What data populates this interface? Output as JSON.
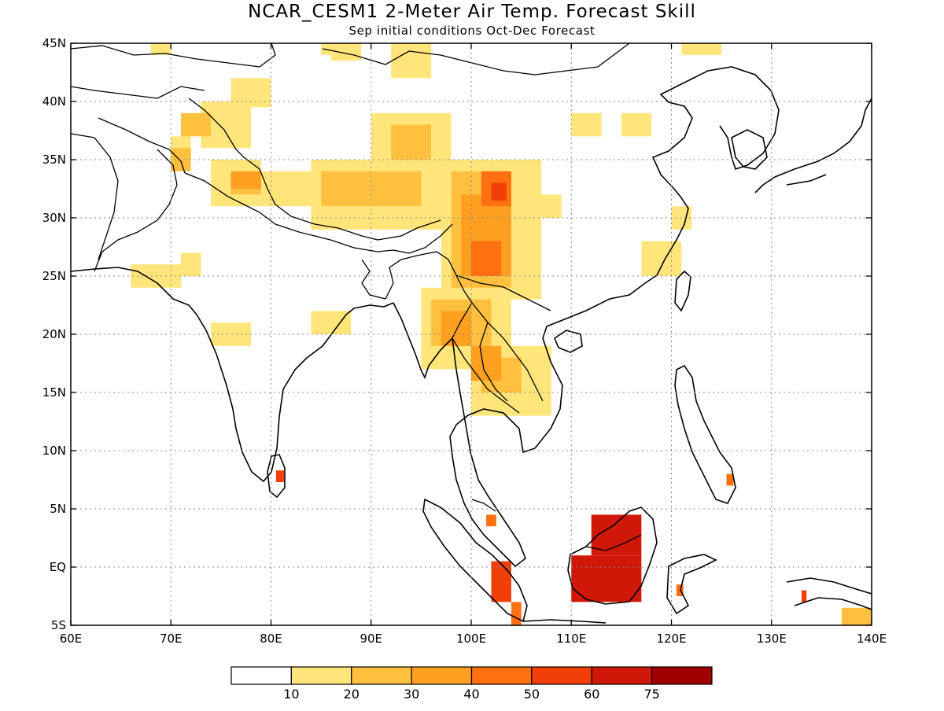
{
  "title": "NCAR_CESM1 2-Meter Air Temp. Forecast Skill",
  "subtitle": "Sep initial conditions  Oct-Dec Forecast",
  "map": {
    "lon_range": [
      60,
      140
    ],
    "lat_range": [
      -5,
      45
    ],
    "x_ticks": [
      {
        "value": 60,
        "label": "60E"
      },
      {
        "value": 70,
        "label": "70E"
      },
      {
        "value": 80,
        "label": "80E"
      },
      {
        "value": 90,
        "label": "90E"
      },
      {
        "value": 100,
        "label": "100E"
      },
      {
        "value": 110,
        "label": "110E"
      },
      {
        "value": 120,
        "label": "120E"
      },
      {
        "value": 130,
        "label": "130E"
      },
      {
        "value": 140,
        "label": "140E"
      }
    ],
    "y_ticks": [
      {
        "value": 45,
        "label": "45N"
      },
      {
        "value": 40,
        "label": "40N"
      },
      {
        "value": 35,
        "label": "35N"
      },
      {
        "value": 30,
        "label": "30N"
      },
      {
        "value": 25,
        "label": "25N"
      },
      {
        "value": 20,
        "label": "20N"
      },
      {
        "value": 15,
        "label": "15N"
      },
      {
        "value": 10,
        "label": "10N"
      },
      {
        "value": 5,
        "label": "5N"
      },
      {
        "value": 0,
        "label": "EQ"
      },
      {
        "value": -5,
        "label": "5S"
      }
    ],
    "grid": "dotted",
    "coastline_color": "#000000"
  },
  "colorbar": {
    "colors": [
      "#ffffff",
      "#ffe57a",
      "#ffc040",
      "#ffa020",
      "#ff7010",
      "#f04008",
      "#d01808",
      "#a00000"
    ],
    "labels": [
      "10",
      "20",
      "30",
      "40",
      "50",
      "60",
      "75"
    ]
  },
  "skill_regions": [
    {
      "level": 1,
      "lon": [
        73,
        78
      ],
      "lat": [
        36,
        40
      ]
    },
    {
      "level": 1,
      "lon": [
        70,
        72
      ],
      "lat": [
        35,
        37
      ]
    },
    {
      "level": 1,
      "lon": [
        76,
        80
      ],
      "lat": [
        39.5,
        42
      ]
    },
    {
      "level": 1,
      "lon": [
        74,
        79
      ],
      "lat": [
        31,
        35
      ]
    },
    {
      "level": 1,
      "lon": [
        79,
        84
      ],
      "lat": [
        31,
        34
      ]
    },
    {
      "level": 1,
      "lon": [
        84,
        98
      ],
      "lat": [
        29,
        35
      ]
    },
    {
      "level": 1,
      "lon": [
        90,
        98
      ],
      "lat": [
        34,
        39
      ]
    },
    {
      "level": 1,
      "lon": [
        97,
        107
      ],
      "lat": [
        23,
        35
      ]
    },
    {
      "level": 1,
      "lon": [
        95,
        104
      ],
      "lat": [
        17,
        24
      ]
    },
    {
      "level": 1,
      "lon": [
        100,
        108
      ],
      "lat": [
        13,
        19
      ]
    },
    {
      "level": 1,
      "lon": [
        92,
        96
      ],
      "lat": [
        42,
        45
      ]
    },
    {
      "level": 1,
      "lon": [
        86,
        89
      ],
      "lat": [
        43.5,
        45
      ]
    },
    {
      "level": 1,
      "lon": [
        107,
        109
      ],
      "lat": [
        30,
        32
      ]
    },
    {
      "level": 1,
      "lon": [
        115,
        118
      ],
      "lat": [
        37,
        39
      ]
    },
    {
      "level": 1,
      "lon": [
        117,
        121
      ],
      "lat": [
        25,
        28
      ]
    },
    {
      "level": 1,
      "lon": [
        120,
        122
      ],
      "lat": [
        29,
        31
      ]
    },
    {
      "level": 1,
      "lon": [
        84,
        88
      ],
      "lat": [
        20,
        22
      ]
    },
    {
      "level": 1,
      "lon": [
        74,
        78
      ],
      "lat": [
        19,
        21
      ]
    },
    {
      "level": 1,
      "lon": [
        66,
        71
      ],
      "lat": [
        24,
        26
      ]
    },
    {
      "level": 1,
      "lon": [
        71,
        73
      ],
      "lat": [
        25,
        27
      ]
    },
    {
      "level": 1,
      "lon": [
        68,
        70
      ],
      "lat": [
        44,
        45
      ]
    },
    {
      "level": 1,
      "lon": [
        121,
        125
      ],
      "lat": [
        44,
        45
      ]
    },
    {
      "level": 1,
      "lon": [
        85,
        87
      ],
      "lat": [
        44,
        45
      ]
    },
    {
      "level": 1,
      "lon": [
        110,
        113
      ],
      "lat": [
        37,
        39
      ]
    },
    {
      "level": 2,
      "lon": [
        71,
        74
      ],
      "lat": [
        37,
        39
      ]
    },
    {
      "level": 2,
      "lon": [
        76,
        79
      ],
      "lat": [
        32,
        34
      ]
    },
    {
      "level": 2,
      "lon": [
        85,
        95
      ],
      "lat": [
        31,
        34
      ]
    },
    {
      "level": 2,
      "lon": [
        92,
        96
      ],
      "lat": [
        35,
        38
      ]
    },
    {
      "level": 2,
      "lon": [
        98,
        104
      ],
      "lat": [
        24,
        34
      ]
    },
    {
      "level": 2,
      "lon": [
        96,
        102
      ],
      "lat": [
        19,
        23
      ]
    },
    {
      "level": 2,
      "lon": [
        101,
        105
      ],
      "lat": [
        15,
        18
      ]
    },
    {
      "level": 2,
      "lon": [
        70,
        72
      ],
      "lat": [
        34,
        36
      ]
    },
    {
      "level": 3,
      "lon": [
        76,
        79
      ],
      "lat": [
        32.5,
        34
      ]
    },
    {
      "level": 3,
      "lon": [
        99,
        104
      ],
      "lat": [
        25,
        32
      ]
    },
    {
      "level": 3,
      "lon": [
        97,
        100
      ],
      "lat": [
        19,
        22
      ]
    },
    {
      "level": 3,
      "lon": [
        100,
        103
      ],
      "lat": [
        16,
        19
      ]
    },
    {
      "level": 4,
      "lon": [
        101,
        104
      ],
      "lat": [
        31,
        34
      ]
    },
    {
      "level": 4,
      "lon": [
        100,
        103
      ],
      "lat": [
        25,
        28
      ]
    },
    {
      "level": 5,
      "lon": [
        102,
        103.5
      ],
      "lat": [
        31.5,
        33
      ]
    },
    {
      "level": 6,
      "lon": [
        110,
        117
      ],
      "lat": [
        -3,
        1
      ]
    },
    {
      "level": 6,
      "lon": [
        112,
        117
      ],
      "lat": [
        1,
        4.5
      ]
    },
    {
      "level": 5,
      "lon": [
        102,
        104
      ],
      "lat": [
        -3,
        0.5
      ]
    },
    {
      "level": 4,
      "lon": [
        104,
        105
      ],
      "lat": [
        -5,
        -3
      ]
    },
    {
      "level": 5,
      "lon": [
        80.5,
        81.3
      ],
      "lat": [
        7.3,
        8.3
      ]
    },
    {
      "level": 4,
      "lon": [
        101.5,
        102.5
      ],
      "lat": [
        3.5,
        4.5
      ]
    },
    {
      "level": 4,
      "lon": [
        125.5,
        126.2
      ],
      "lat": [
        7,
        8
      ]
    },
    {
      "level": 5,
      "lon": [
        133,
        133.5
      ],
      "lat": [
        -3,
        -2
      ]
    },
    {
      "level": 2,
      "lon": [
        137,
        140
      ],
      "lat": [
        -5,
        -3.5
      ]
    },
    {
      "level": 4,
      "lon": [
        120.5,
        121.2
      ],
      "lat": [
        -2.5,
        -1.5
      ]
    }
  ]
}
